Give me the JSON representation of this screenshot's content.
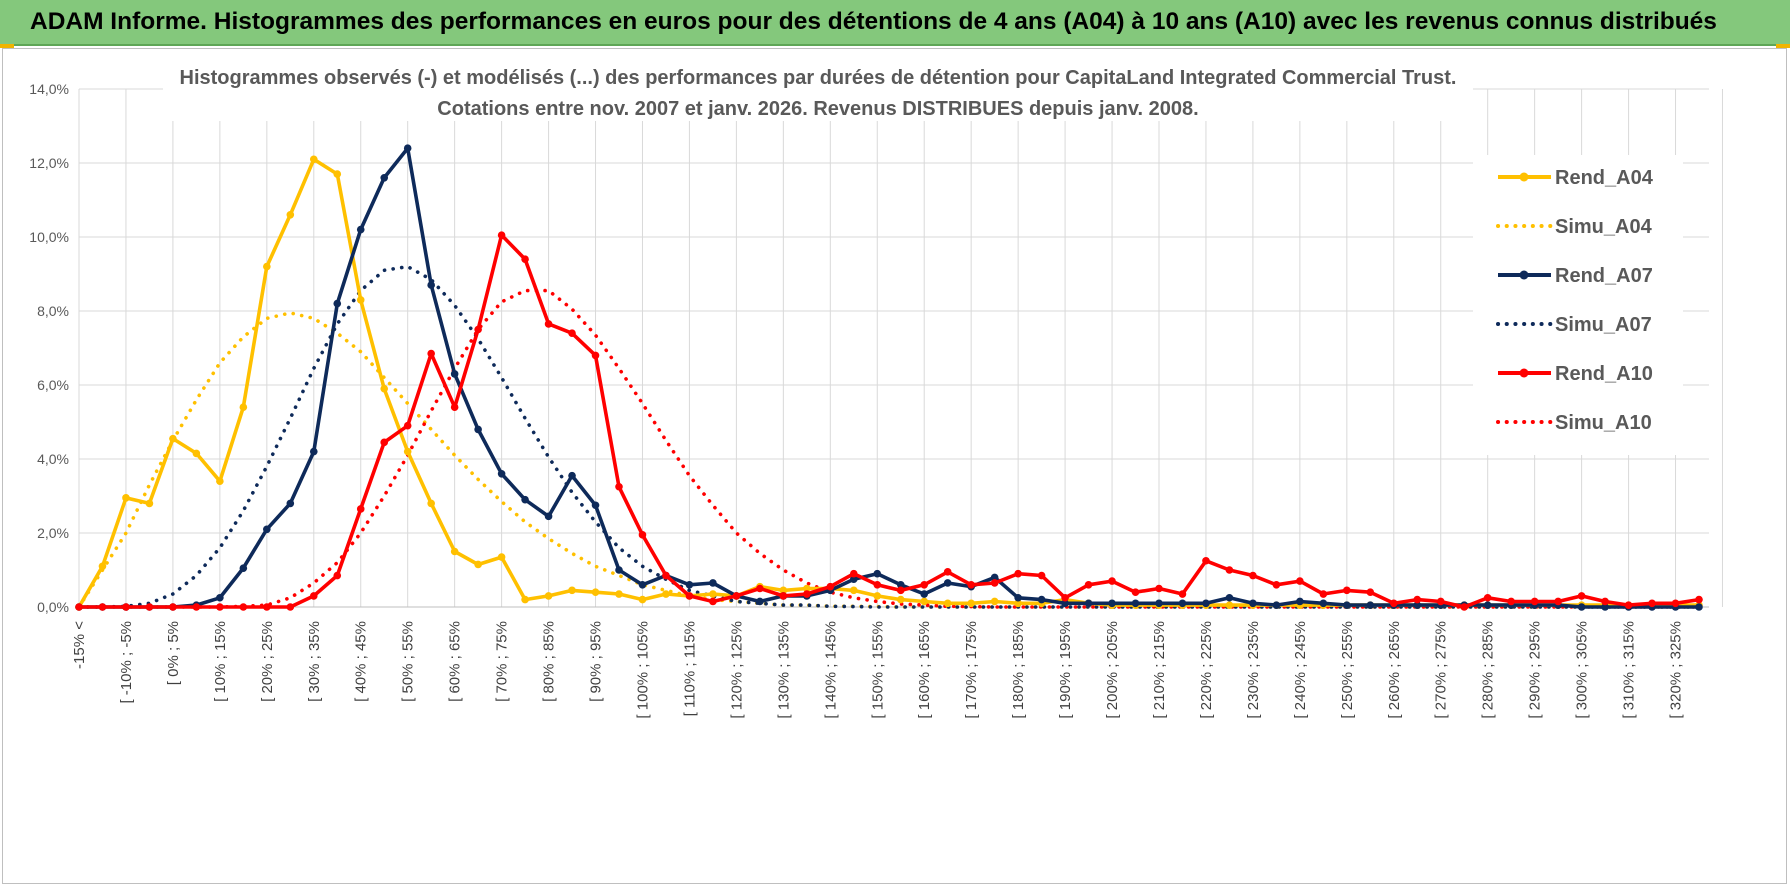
{
  "banner": {
    "title": "ADAM Informe. Histogrammes des performances en euros pour des détentions de 4 ans (A04) à 10 ans (A10) avec les revenus connus distribués"
  },
  "colors": {
    "banner": "#84c87c",
    "A04": "#ffc000",
    "A07": "#0e2a5a",
    "A10": "#ff0000",
    "grid": "#d9d9d9"
  },
  "chart_data": {
    "type": "line",
    "title": [
      "Histogrammes observés (-) et modélisés (...) des performances par durées de détention pour CapitaLand Integrated Commercial Trust.",
      "Cotations entre nov. 2007 et janv. 2026. Revenus DISTRIBUES depuis janv. 2008."
    ],
    "xlabel": "",
    "ylabel": "",
    "ylim": [
      0,
      14
    ],
    "yticks": [
      "0,0%",
      "2,0%",
      "4,0%",
      "6,0%",
      "8,0%",
      "10,0%",
      "12,0%",
      "14,0%"
    ],
    "grid": true,
    "legend_position": "right",
    "tick_labels": [
      "-15% <",
      "[ -10% ; -5%",
      "[ 0% ; 5%",
      "[ 10% ; 15%",
      "[ 20% ; 25%",
      "[ 30% ; 35%",
      "[ 40% ; 45%",
      "[ 50% ; 55%",
      "[ 60% ; 65%",
      "[ 70% ; 75%",
      "[ 80% ; 85%",
      "[ 90% ; 95%",
      "[ 100% ; 105%",
      "[ 110% ; 115%",
      "[ 120% ; 125%",
      "[ 130% ; 135%",
      "[ 140% ; 145%",
      "[ 150% ; 155%",
      "[ 160% ; 165%",
      "[ 170% ; 175%",
      "[ 180% ; 185%",
      "[ 190% ; 195%",
      "[ 200% ; 205%",
      "[ 210% ; 215%",
      "[ 220% ; 225%",
      "[ 230% ; 235%",
      "[ 240% ; 245%",
      "[ 250% ; 255%",
      "[ 260% ; 265%",
      "[ 270% ; 275%",
      "[ 280% ; 285%",
      "[ 290% ; 295%",
      "[ 300% ; 305%",
      "[ 310% ; 315%",
      "[ 320% ; 325%"
    ],
    "series": [
      {
        "name": "Rend_A04",
        "style": "solid",
        "markers": true,
        "color": "#ffc000",
        "values": [
          0.0,
          1.1,
          2.95,
          2.8,
          4.55,
          4.15,
          3.4,
          5.4,
          9.2,
          10.6,
          12.1,
          11.7,
          8.3,
          5.9,
          4.2,
          2.8,
          1.5,
          1.15,
          1.35,
          0.2,
          0.3,
          0.45,
          0.4,
          0.35,
          0.2,
          0.35,
          0.3,
          0.35,
          0.3,
          0.55,
          0.45,
          0.5,
          0.5,
          0.45,
          0.3,
          0.2,
          0.15,
          0.1,
          0.1,
          0.15,
          0.1,
          0.1,
          0.2,
          0.1,
          0.05,
          0.05,
          0.05,
          0.05,
          0.05,
          0.05,
          0.05,
          0.05,
          0.05,
          0.05,
          0.05,
          0.05,
          0.05,
          0.05,
          0.05,
          0.05,
          0.05,
          0.05,
          0.05,
          0.05,
          0.05,
          0.05,
          0.05,
          0.05,
          0.05,
          0.05
        ]
      },
      {
        "name": "Simu_A04",
        "style": "dotted",
        "markers": false,
        "color": "#ffc000",
        "values": [
          0.0,
          1.0,
          2.0,
          3.3,
          4.5,
          5.6,
          6.6,
          7.3,
          7.8,
          7.95,
          7.8,
          7.4,
          6.9,
          6.2,
          5.5,
          4.8,
          4.1,
          3.45,
          2.85,
          2.3,
          1.85,
          1.45,
          1.1,
          0.85,
          0.6,
          0.45,
          0.3,
          0.2,
          0.15,
          0.1,
          0.05,
          0.05,
          0.02,
          0.02,
          0.01,
          0.0,
          0.0,
          0.0,
          0.0,
          0.0,
          0.0,
          0.0,
          0.0,
          0.0,
          0.0,
          0.0,
          0.0,
          0.0,
          0.0,
          0.0,
          0.0,
          0.0,
          0.0,
          0.0,
          0.0,
          0.0,
          0.0,
          0.0,
          0.0,
          0.0,
          0.0,
          0.0,
          0.0,
          0.0,
          0.0,
          0.0,
          0.0,
          0.0,
          0.0,
          0.0
        ]
      },
      {
        "name": "Rend_A07",
        "style": "solid",
        "markers": true,
        "color": "#0e2a5a",
        "values": [
          0.0,
          0.0,
          0.0,
          0.0,
          0.0,
          0.05,
          0.25,
          1.05,
          2.1,
          2.8,
          4.2,
          8.2,
          10.2,
          11.6,
          12.4,
          8.7,
          6.3,
          4.8,
          3.6,
          2.9,
          2.45,
          3.55,
          2.75,
          1.0,
          0.6,
          0.85,
          0.6,
          0.65,
          0.3,
          0.15,
          0.3,
          0.3,
          0.45,
          0.75,
          0.9,
          0.6,
          0.35,
          0.65,
          0.55,
          0.8,
          0.25,
          0.2,
          0.1,
          0.1,
          0.1,
          0.1,
          0.1,
          0.1,
          0.1,
          0.25,
          0.1,
          0.05,
          0.15,
          0.1,
          0.05,
          0.05,
          0.05,
          0.05,
          0.05,
          0.05,
          0.05,
          0.05,
          0.05,
          0.05,
          0.0,
          0.0,
          0.0,
          0.0,
          0.0,
          0.0
        ]
      },
      {
        "name": "Simu_A07",
        "style": "dotted",
        "markers": false,
        "color": "#0e2a5a",
        "values": [
          0.0,
          0.0,
          0.02,
          0.1,
          0.35,
          0.85,
          1.6,
          2.6,
          3.8,
          5.1,
          6.45,
          7.65,
          8.55,
          9.1,
          9.2,
          8.85,
          8.15,
          7.25,
          6.2,
          5.1,
          4.05,
          3.1,
          2.3,
          1.6,
          1.1,
          0.75,
          0.45,
          0.3,
          0.15,
          0.1,
          0.05,
          0.05,
          0.02,
          0.01,
          0.0,
          0.0,
          0.0,
          0.0,
          0.0,
          0.0,
          0.0,
          0.0,
          0.0,
          0.0,
          0.0,
          0.0,
          0.0,
          0.0,
          0.0,
          0.0,
          0.0,
          0.0,
          0.0,
          0.0,
          0.0,
          0.0,
          0.0,
          0.0,
          0.0,
          0.0,
          0.0,
          0.0,
          0.0,
          0.0,
          0.0,
          0.0,
          0.0,
          0.0,
          0.0,
          0.0
        ]
      },
      {
        "name": "Rend_A10",
        "style": "solid",
        "markers": true,
        "color": "#ff0000",
        "values": [
          0.0,
          0.0,
          0.0,
          0.0,
          0.0,
          0.0,
          0.0,
          0.0,
          0.0,
          0.0,
          0.3,
          0.85,
          2.65,
          4.45,
          4.9,
          6.85,
          5.4,
          7.5,
          10.05,
          9.4,
          7.65,
          7.4,
          6.8,
          3.25,
          1.95,
          0.85,
          0.3,
          0.15,
          0.3,
          0.5,
          0.3,
          0.35,
          0.55,
          0.9,
          0.6,
          0.45,
          0.6,
          0.95,
          0.6,
          0.65,
          0.9,
          0.85,
          0.25,
          0.6,
          0.7,
          0.4,
          0.5,
          0.35,
          1.25,
          1.0,
          0.85,
          0.6,
          0.7,
          0.35,
          0.45,
          0.4,
          0.1,
          0.2,
          0.15,
          0.0,
          0.25,
          0.15,
          0.15,
          0.15,
          0.3,
          0.15,
          0.05,
          0.1,
          0.1,
          0.2
        ]
      },
      {
        "name": "Simu_A10",
        "style": "dotted",
        "markers": false,
        "color": "#ff0000",
        "values": [
          0.0,
          0.0,
          0.0,
          0.0,
          0.0,
          0.0,
          0.0,
          0.02,
          0.05,
          0.25,
          0.65,
          1.2,
          2.0,
          3.0,
          4.1,
          5.3,
          6.45,
          7.5,
          8.25,
          8.55,
          8.55,
          8.05,
          7.35,
          6.45,
          5.5,
          4.5,
          3.55,
          2.75,
          2.0,
          1.45,
          1.0,
          0.65,
          0.4,
          0.25,
          0.15,
          0.08,
          0.05,
          0.02,
          0.01,
          0.0,
          0.0,
          0.0,
          0.0,
          0.0,
          0.0,
          0.0,
          0.0,
          0.0,
          0.0,
          0.0,
          0.0,
          0.0,
          0.0,
          0.0,
          0.0,
          0.0,
          0.0,
          0.0,
          0.0,
          0.0,
          0.0,
          0.0,
          0.0,
          0.0,
          0.0,
          0.0,
          0.0,
          0.0,
          0.0,
          0.0
        ]
      }
    ]
  }
}
